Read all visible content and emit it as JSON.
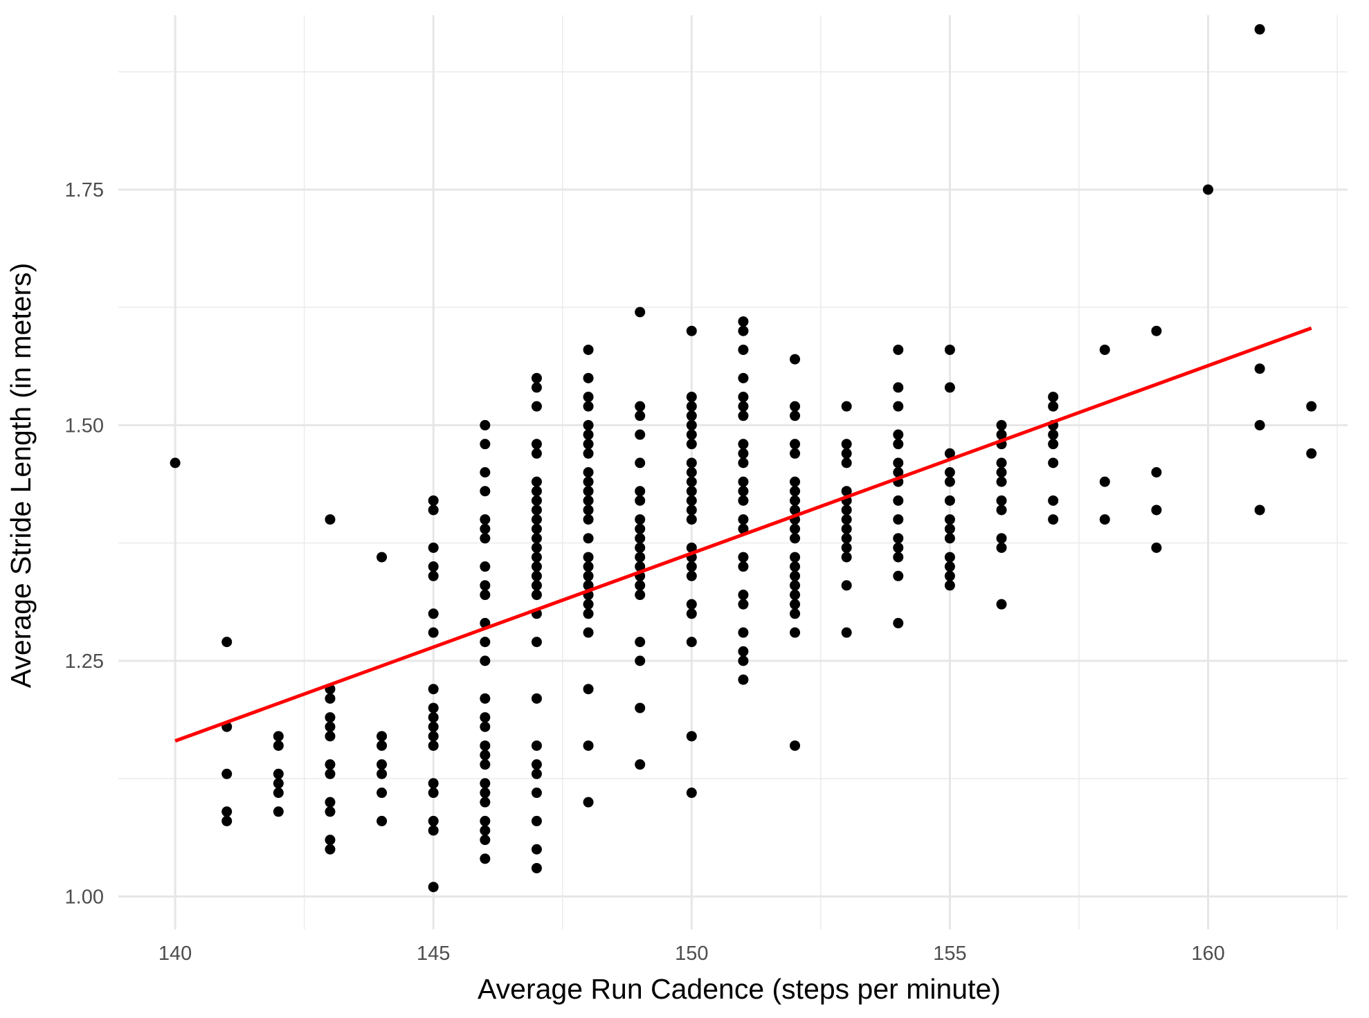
{
  "chart_data": {
    "type": "scatter",
    "title": "",
    "xlabel": "Average Run Cadence (steps per minute)",
    "ylabel": "Average Stride Length (in meters)",
    "xlim": [
      138.9,
      162.7
    ],
    "ylim": [
      0.965,
      1.935
    ],
    "x_ticks": [
      140,
      145,
      150,
      155,
      160
    ],
    "x_tick_labels": [
      "140",
      "145",
      "150",
      "155",
      "160"
    ],
    "y_ticks": [
      1.0,
      1.25,
      1.5,
      1.75
    ],
    "y_tick_labels": [
      "1.00",
      "1.25",
      "1.50",
      "1.75"
    ],
    "grid": true,
    "point_color": "#000000",
    "trend_color": "#ff0000",
    "trend_line": {
      "x": [
        140,
        162
      ],
      "y": [
        1.165,
        1.603
      ]
    },
    "points": [
      {
        "x": 140,
        "y": 1.46
      },
      {
        "x": 141,
        "y": 1.27
      },
      {
        "x": 141,
        "y": 1.18
      },
      {
        "x": 141,
        "y": 1.13
      },
      {
        "x": 141,
        "y": 1.09
      },
      {
        "x": 141,
        "y": 1.08
      },
      {
        "x": 142,
        "y": 1.17
      },
      {
        "x": 142,
        "y": 1.16
      },
      {
        "x": 142,
        "y": 1.13
      },
      {
        "x": 142,
        "y": 1.12
      },
      {
        "x": 142,
        "y": 1.11
      },
      {
        "x": 142,
        "y": 1.09
      },
      {
        "x": 143,
        "y": 1.4
      },
      {
        "x": 143,
        "y": 1.22
      },
      {
        "x": 143,
        "y": 1.21
      },
      {
        "x": 143,
        "y": 1.19
      },
      {
        "x": 143,
        "y": 1.18
      },
      {
        "x": 143,
        "y": 1.17
      },
      {
        "x": 143,
        "y": 1.14
      },
      {
        "x": 143,
        "y": 1.13
      },
      {
        "x": 143,
        "y": 1.1
      },
      {
        "x": 143,
        "y": 1.09
      },
      {
        "x": 143,
        "y": 1.06
      },
      {
        "x": 143,
        "y": 1.05
      },
      {
        "x": 144,
        "y": 1.36
      },
      {
        "x": 144,
        "y": 1.17
      },
      {
        "x": 144,
        "y": 1.16
      },
      {
        "x": 144,
        "y": 1.14
      },
      {
        "x": 144,
        "y": 1.13
      },
      {
        "x": 144,
        "y": 1.11
      },
      {
        "x": 144,
        "y": 1.08
      },
      {
        "x": 145,
        "y": 1.42
      },
      {
        "x": 145,
        "y": 1.41
      },
      {
        "x": 145,
        "y": 1.37
      },
      {
        "x": 145,
        "y": 1.35
      },
      {
        "x": 145,
        "y": 1.34
      },
      {
        "x": 145,
        "y": 1.3
      },
      {
        "x": 145,
        "y": 1.28
      },
      {
        "x": 145,
        "y": 1.22
      },
      {
        "x": 145,
        "y": 1.2
      },
      {
        "x": 145,
        "y": 1.19
      },
      {
        "x": 145,
        "y": 1.18
      },
      {
        "x": 145,
        "y": 1.17
      },
      {
        "x": 145,
        "y": 1.16
      },
      {
        "x": 145,
        "y": 1.12
      },
      {
        "x": 145,
        "y": 1.11
      },
      {
        "x": 145,
        "y": 1.08
      },
      {
        "x": 145,
        "y": 1.07
      },
      {
        "x": 145,
        "y": 1.01
      },
      {
        "x": 146,
        "y": 1.5
      },
      {
        "x": 146,
        "y": 1.48
      },
      {
        "x": 146,
        "y": 1.45
      },
      {
        "x": 146,
        "y": 1.43
      },
      {
        "x": 146,
        "y": 1.4
      },
      {
        "x": 146,
        "y": 1.39
      },
      {
        "x": 146,
        "y": 1.38
      },
      {
        "x": 146,
        "y": 1.35
      },
      {
        "x": 146,
        "y": 1.33
      },
      {
        "x": 146,
        "y": 1.32
      },
      {
        "x": 146,
        "y": 1.29
      },
      {
        "x": 146,
        "y": 1.27
      },
      {
        "x": 146,
        "y": 1.25
      },
      {
        "x": 146,
        "y": 1.21
      },
      {
        "x": 146,
        "y": 1.19
      },
      {
        "x": 146,
        "y": 1.18
      },
      {
        "x": 146,
        "y": 1.16
      },
      {
        "x": 146,
        "y": 1.15
      },
      {
        "x": 146,
        "y": 1.14
      },
      {
        "x": 146,
        "y": 1.12
      },
      {
        "x": 146,
        "y": 1.11
      },
      {
        "x": 146,
        "y": 1.1
      },
      {
        "x": 146,
        "y": 1.08
      },
      {
        "x": 146,
        "y": 1.07
      },
      {
        "x": 146,
        "y": 1.06
      },
      {
        "x": 146,
        "y": 1.04
      },
      {
        "x": 147,
        "y": 1.55
      },
      {
        "x": 147,
        "y": 1.54
      },
      {
        "x": 147,
        "y": 1.52
      },
      {
        "x": 147,
        "y": 1.48
      },
      {
        "x": 147,
        "y": 1.47
      },
      {
        "x": 147,
        "y": 1.44
      },
      {
        "x": 147,
        "y": 1.43
      },
      {
        "x": 147,
        "y": 1.42
      },
      {
        "x": 147,
        "y": 1.41
      },
      {
        "x": 147,
        "y": 1.4
      },
      {
        "x": 147,
        "y": 1.39
      },
      {
        "x": 147,
        "y": 1.38
      },
      {
        "x": 147,
        "y": 1.37
      },
      {
        "x": 147,
        "y": 1.36
      },
      {
        "x": 147,
        "y": 1.35
      },
      {
        "x": 147,
        "y": 1.34
      },
      {
        "x": 147,
        "y": 1.33
      },
      {
        "x": 147,
        "y": 1.32
      },
      {
        "x": 147,
        "y": 1.3
      },
      {
        "x": 147,
        "y": 1.27
      },
      {
        "x": 147,
        "y": 1.21
      },
      {
        "x": 147,
        "y": 1.16
      },
      {
        "x": 147,
        "y": 1.14
      },
      {
        "x": 147,
        "y": 1.13
      },
      {
        "x": 147,
        "y": 1.11
      },
      {
        "x": 147,
        "y": 1.08
      },
      {
        "x": 147,
        "y": 1.05
      },
      {
        "x": 147,
        "y": 1.03
      },
      {
        "x": 148,
        "y": 1.58
      },
      {
        "x": 148,
        "y": 1.55
      },
      {
        "x": 148,
        "y": 1.53
      },
      {
        "x": 148,
        "y": 1.52
      },
      {
        "x": 148,
        "y": 1.5
      },
      {
        "x": 148,
        "y": 1.49
      },
      {
        "x": 148,
        "y": 1.48
      },
      {
        "x": 148,
        "y": 1.47
      },
      {
        "x": 148,
        "y": 1.45
      },
      {
        "x": 148,
        "y": 1.44
      },
      {
        "x": 148,
        "y": 1.43
      },
      {
        "x": 148,
        "y": 1.42
      },
      {
        "x": 148,
        "y": 1.41
      },
      {
        "x": 148,
        "y": 1.4
      },
      {
        "x": 148,
        "y": 1.38
      },
      {
        "x": 148,
        "y": 1.36
      },
      {
        "x": 148,
        "y": 1.35
      },
      {
        "x": 148,
        "y": 1.34
      },
      {
        "x": 148,
        "y": 1.33
      },
      {
        "x": 148,
        "y": 1.32
      },
      {
        "x": 148,
        "y": 1.31
      },
      {
        "x": 148,
        "y": 1.3
      },
      {
        "x": 148,
        "y": 1.28
      },
      {
        "x": 148,
        "y": 1.22
      },
      {
        "x": 148,
        "y": 1.16
      },
      {
        "x": 148,
        "y": 1.1
      },
      {
        "x": 149,
        "y": 1.62
      },
      {
        "x": 149,
        "y": 1.52
      },
      {
        "x": 149,
        "y": 1.51
      },
      {
        "x": 149,
        "y": 1.49
      },
      {
        "x": 149,
        "y": 1.46
      },
      {
        "x": 149,
        "y": 1.43
      },
      {
        "x": 149,
        "y": 1.42
      },
      {
        "x": 149,
        "y": 1.4
      },
      {
        "x": 149,
        "y": 1.39
      },
      {
        "x": 149,
        "y": 1.38
      },
      {
        "x": 149,
        "y": 1.37
      },
      {
        "x": 149,
        "y": 1.36
      },
      {
        "x": 149,
        "y": 1.35
      },
      {
        "x": 149,
        "y": 1.34
      },
      {
        "x": 149,
        "y": 1.33
      },
      {
        "x": 149,
        "y": 1.32
      },
      {
        "x": 149,
        "y": 1.27
      },
      {
        "x": 149,
        "y": 1.25
      },
      {
        "x": 149,
        "y": 1.2
      },
      {
        "x": 149,
        "y": 1.14
      },
      {
        "x": 150,
        "y": 1.6
      },
      {
        "x": 150,
        "y": 1.53
      },
      {
        "x": 150,
        "y": 1.52
      },
      {
        "x": 150,
        "y": 1.51
      },
      {
        "x": 150,
        "y": 1.5
      },
      {
        "x": 150,
        "y": 1.49
      },
      {
        "x": 150,
        "y": 1.48
      },
      {
        "x": 150,
        "y": 1.46
      },
      {
        "x": 150,
        "y": 1.45
      },
      {
        "x": 150,
        "y": 1.44
      },
      {
        "x": 150,
        "y": 1.43
      },
      {
        "x": 150,
        "y": 1.42
      },
      {
        "x": 150,
        "y": 1.41
      },
      {
        "x": 150,
        "y": 1.4
      },
      {
        "x": 150,
        "y": 1.37
      },
      {
        "x": 150,
        "y": 1.36
      },
      {
        "x": 150,
        "y": 1.35
      },
      {
        "x": 150,
        "y": 1.34
      },
      {
        "x": 150,
        "y": 1.31
      },
      {
        "x": 150,
        "y": 1.3
      },
      {
        "x": 150,
        "y": 1.27
      },
      {
        "x": 150,
        "y": 1.17
      },
      {
        "x": 150,
        "y": 1.11
      },
      {
        "x": 151,
        "y": 1.61
      },
      {
        "x": 151,
        "y": 1.6
      },
      {
        "x": 151,
        "y": 1.58
      },
      {
        "x": 151,
        "y": 1.55
      },
      {
        "x": 151,
        "y": 1.53
      },
      {
        "x": 151,
        "y": 1.52
      },
      {
        "x": 151,
        "y": 1.51
      },
      {
        "x": 151,
        "y": 1.48
      },
      {
        "x": 151,
        "y": 1.47
      },
      {
        "x": 151,
        "y": 1.46
      },
      {
        "x": 151,
        "y": 1.44
      },
      {
        "x": 151,
        "y": 1.43
      },
      {
        "x": 151,
        "y": 1.42
      },
      {
        "x": 151,
        "y": 1.4
      },
      {
        "x": 151,
        "y": 1.39
      },
      {
        "x": 151,
        "y": 1.36
      },
      {
        "x": 151,
        "y": 1.35
      },
      {
        "x": 151,
        "y": 1.32
      },
      {
        "x": 151,
        "y": 1.31
      },
      {
        "x": 151,
        "y": 1.28
      },
      {
        "x": 151,
        "y": 1.26
      },
      {
        "x": 151,
        "y": 1.25
      },
      {
        "x": 151,
        "y": 1.23
      },
      {
        "x": 152,
        "y": 1.57
      },
      {
        "x": 152,
        "y": 1.52
      },
      {
        "x": 152,
        "y": 1.51
      },
      {
        "x": 152,
        "y": 1.48
      },
      {
        "x": 152,
        "y": 1.47
      },
      {
        "x": 152,
        "y": 1.44
      },
      {
        "x": 152,
        "y": 1.43
      },
      {
        "x": 152,
        "y": 1.42
      },
      {
        "x": 152,
        "y": 1.41
      },
      {
        "x": 152,
        "y": 1.4
      },
      {
        "x": 152,
        "y": 1.39
      },
      {
        "x": 152,
        "y": 1.38
      },
      {
        "x": 152,
        "y": 1.36
      },
      {
        "x": 152,
        "y": 1.35
      },
      {
        "x": 152,
        "y": 1.34
      },
      {
        "x": 152,
        "y": 1.33
      },
      {
        "x": 152,
        "y": 1.32
      },
      {
        "x": 152,
        "y": 1.31
      },
      {
        "x": 152,
        "y": 1.3
      },
      {
        "x": 152,
        "y": 1.28
      },
      {
        "x": 152,
        "y": 1.16
      },
      {
        "x": 153,
        "y": 1.52
      },
      {
        "x": 153,
        "y": 1.48
      },
      {
        "x": 153,
        "y": 1.47
      },
      {
        "x": 153,
        "y": 1.46
      },
      {
        "x": 153,
        "y": 1.43
      },
      {
        "x": 153,
        "y": 1.42
      },
      {
        "x": 153,
        "y": 1.41
      },
      {
        "x": 153,
        "y": 1.4
      },
      {
        "x": 153,
        "y": 1.39
      },
      {
        "x": 153,
        "y": 1.38
      },
      {
        "x": 153,
        "y": 1.37
      },
      {
        "x": 153,
        "y": 1.36
      },
      {
        "x": 153,
        "y": 1.33
      },
      {
        "x": 153,
        "y": 1.28
      },
      {
        "x": 154,
        "y": 1.58
      },
      {
        "x": 154,
        "y": 1.54
      },
      {
        "x": 154,
        "y": 1.52
      },
      {
        "x": 154,
        "y": 1.49
      },
      {
        "x": 154,
        "y": 1.48
      },
      {
        "x": 154,
        "y": 1.46
      },
      {
        "x": 154,
        "y": 1.45
      },
      {
        "x": 154,
        "y": 1.44
      },
      {
        "x": 154,
        "y": 1.42
      },
      {
        "x": 154,
        "y": 1.4
      },
      {
        "x": 154,
        "y": 1.38
      },
      {
        "x": 154,
        "y": 1.37
      },
      {
        "x": 154,
        "y": 1.36
      },
      {
        "x": 154,
        "y": 1.34
      },
      {
        "x": 154,
        "y": 1.29
      },
      {
        "x": 155,
        "y": 1.58
      },
      {
        "x": 155,
        "y": 1.54
      },
      {
        "x": 155,
        "y": 1.47
      },
      {
        "x": 155,
        "y": 1.45
      },
      {
        "x": 155,
        "y": 1.44
      },
      {
        "x": 155,
        "y": 1.42
      },
      {
        "x": 155,
        "y": 1.4
      },
      {
        "x": 155,
        "y": 1.39
      },
      {
        "x": 155,
        "y": 1.38
      },
      {
        "x": 155,
        "y": 1.36
      },
      {
        "x": 155,
        "y": 1.35
      },
      {
        "x": 155,
        "y": 1.34
      },
      {
        "x": 155,
        "y": 1.33
      },
      {
        "x": 156,
        "y": 1.5
      },
      {
        "x": 156,
        "y": 1.49
      },
      {
        "x": 156,
        "y": 1.48
      },
      {
        "x": 156,
        "y": 1.46
      },
      {
        "x": 156,
        "y": 1.45
      },
      {
        "x": 156,
        "y": 1.44
      },
      {
        "x": 156,
        "y": 1.42
      },
      {
        "x": 156,
        "y": 1.41
      },
      {
        "x": 156,
        "y": 1.38
      },
      {
        "x": 156,
        "y": 1.37
      },
      {
        "x": 156,
        "y": 1.31
      },
      {
        "x": 157,
        "y": 1.53
      },
      {
        "x": 157,
        "y": 1.52
      },
      {
        "x": 157,
        "y": 1.5
      },
      {
        "x": 157,
        "y": 1.49
      },
      {
        "x": 157,
        "y": 1.48
      },
      {
        "x": 157,
        "y": 1.46
      },
      {
        "x": 157,
        "y": 1.42
      },
      {
        "x": 157,
        "y": 1.4
      },
      {
        "x": 158,
        "y": 1.58
      },
      {
        "x": 158,
        "y": 1.44
      },
      {
        "x": 158,
        "y": 1.4
      },
      {
        "x": 159,
        "y": 1.6
      },
      {
        "x": 159,
        "y": 1.45
      },
      {
        "x": 159,
        "y": 1.41
      },
      {
        "x": 159,
        "y": 1.37
      },
      {
        "x": 160,
        "y": 1.75
      },
      {
        "x": 161,
        "y": 1.92
      },
      {
        "x": 161,
        "y": 1.56
      },
      {
        "x": 161,
        "y": 1.5
      },
      {
        "x": 161,
        "y": 1.41
      },
      {
        "x": 162,
        "y": 1.52
      },
      {
        "x": 162,
        "y": 1.47
      }
    ]
  }
}
